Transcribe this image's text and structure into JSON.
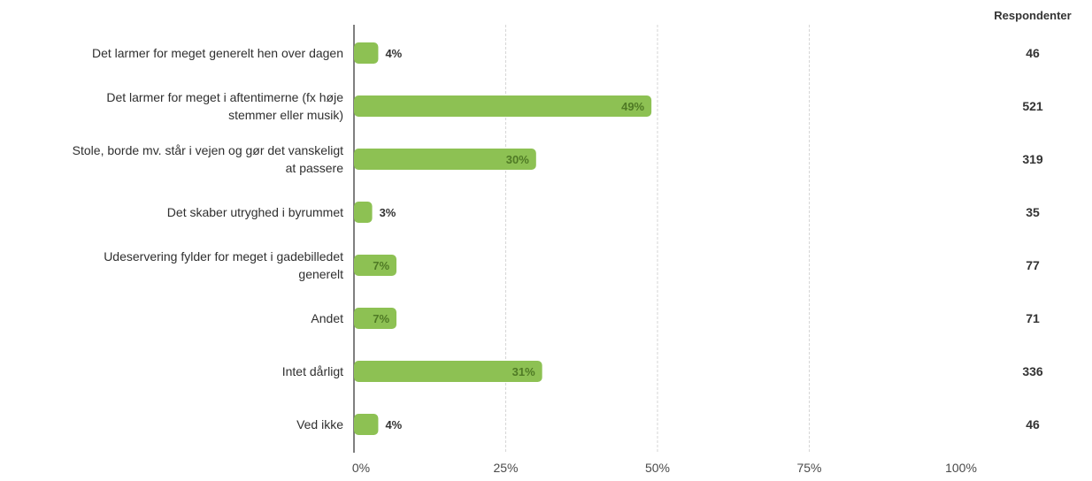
{
  "chart_data": {
    "type": "bar",
    "orientation": "horizontal",
    "categories": [
      "Det larmer for meget generelt hen over dagen",
      "Det larmer for meget i aftentimerne (fx høje stemmer eller musik)",
      "Stole, borde mv. står i vejen og gør det vanskeligt at passere",
      "Det skaber utryghed i byrummet",
      "Udeservering fylder for meget i gadebilledet generelt",
      "Andet",
      "Intet dårligt",
      "Ved ikke"
    ],
    "category_lines": [
      [
        "Det larmer for meget generelt hen over dagen"
      ],
      [
        "Det larmer for meget i aftentimerne (fx høje",
        "stemmer eller musik)"
      ],
      [
        "Stole, borde mv. står i vejen og gør det vanskeligt",
        "at passere"
      ],
      [
        "Det skaber utryghed i byrummet"
      ],
      [
        "Udeservering fylder for meget i gadebilledet",
        "generelt"
      ],
      [
        "Andet"
      ],
      [
        "Intet dårligt"
      ],
      [
        "Ved ikke"
      ]
    ],
    "values": [
      4,
      49,
      30,
      3,
      7,
      7,
      31,
      4
    ],
    "value_labels": [
      "4%",
      "49%",
      "30%",
      "3%",
      "7%",
      "7%",
      "31%",
      "4%"
    ],
    "respondents_header": "Respondenter",
    "respondents": [
      "46",
      "521",
      "319",
      "35",
      "77",
      "71",
      "336",
      "46"
    ],
    "xlim": [
      0,
      100
    ],
    "xticks": [
      0,
      25,
      50,
      75,
      100
    ],
    "xtick_labels": [
      "0%",
      "25%",
      "50%",
      "75%",
      "100%"
    ],
    "grid": true,
    "bar_color": "#8dc153"
  }
}
